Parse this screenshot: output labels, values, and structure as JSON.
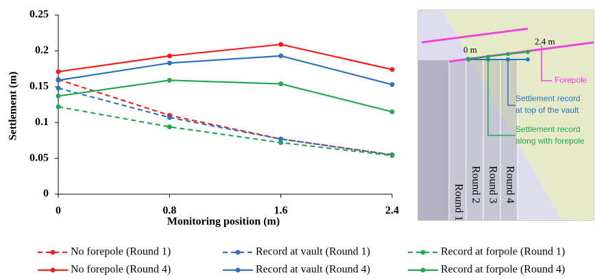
{
  "chart_data": {
    "type": "line",
    "xlabel": "Monitoring position (m)",
    "ylabel": "Settlement (m)",
    "x": [
      0,
      0.8,
      1.6,
      2.4
    ],
    "xlim": [
      0,
      2.4
    ],
    "xticks": [
      0,
      0.8,
      1.6,
      2.4
    ],
    "ylim": [
      0,
      0.25
    ],
    "yticks": [
      0,
      0.05,
      0.1,
      0.15,
      0.2,
      0.25
    ],
    "grid": false,
    "series": [
      {
        "name": "No forepole (Round 1)",
        "color": "#ff1a1a",
        "dashed": true,
        "values": [
          0.16,
          0.11,
          0.077,
          0.055
        ]
      },
      {
        "name": "Record at vault (Round 1)",
        "color": "#2b72c0",
        "dashed": true,
        "values": [
          0.148,
          0.107,
          0.077,
          0.055
        ]
      },
      {
        "name": "Record at forpole (Round 1)",
        "color": "#1faa4f",
        "dashed": true,
        "values": [
          0.122,
          0.094,
          0.072,
          0.054
        ]
      },
      {
        "name": "No forepole (Round 4)",
        "color": "#ff1a1a",
        "dashed": false,
        "values": [
          0.171,
          0.193,
          0.209,
          0.174
        ]
      },
      {
        "name": "Record at vault (Round 4)",
        "color": "#2b72c0",
        "dashed": false,
        "values": [
          0.159,
          0.183,
          0.193,
          0.153
        ]
      },
      {
        "name": "Record at forpole (Round 4)",
        "color": "#1faa4f",
        "dashed": false,
        "values": [
          0.137,
          0.159,
          0.154,
          0.115
        ]
      }
    ]
  },
  "diagram": {
    "start": "0 m",
    "end": "2.4 m",
    "forepole": "Forepole",
    "vault_record": [
      "Settlement record",
      "at top of the vault"
    ],
    "forepole_record": [
      "Settlement record",
      "along with forepole"
    ],
    "rounds": [
      "Round 1",
      "Round 2",
      "Round 3",
      "Round 4"
    ]
  }
}
